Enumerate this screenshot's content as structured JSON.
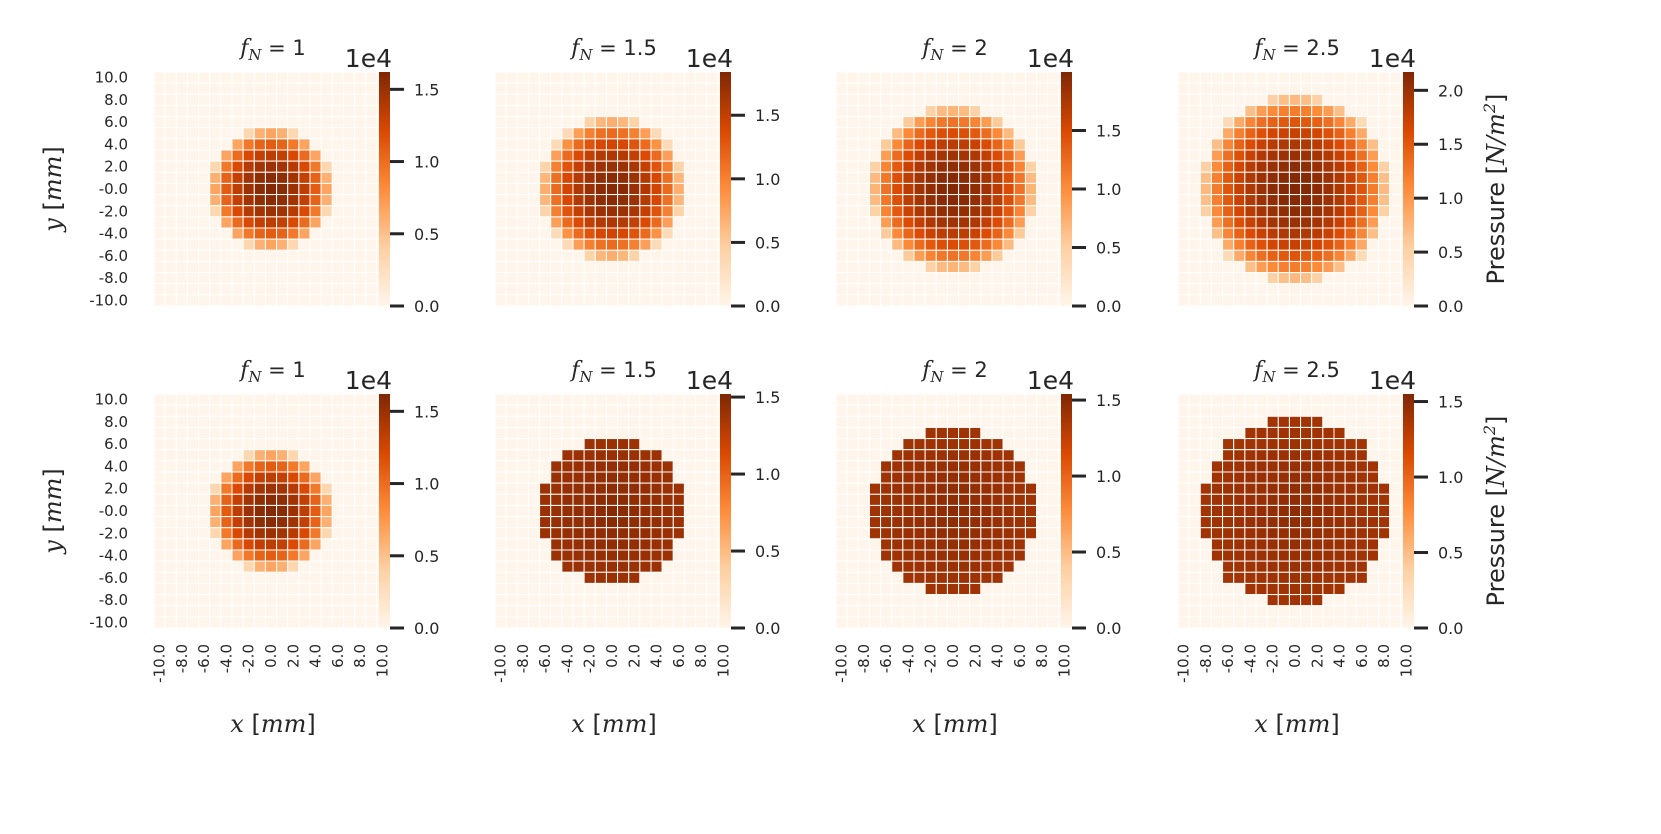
{
  "chart_data": {
    "type": "heatmap",
    "grid_size": 21,
    "tick_labels": [
      "10.0",
      "8.0",
      "6.0",
      "4.0",
      "2.0",
      "-0.0",
      "-2.0",
      "-4.0",
      "-6.0",
      "-8.0",
      "-10.0"
    ],
    "x_tick_labels": [
      "-10.0",
      "-8.0",
      "-6.0",
      "-4.0",
      "-2.0",
      "0.0",
      "2.0",
      "4.0",
      "6.0",
      "8.0",
      "10.0"
    ],
    "xlabel": "x [mm]",
    "ylabel": "y [mm]",
    "colorbar_label": "Pressure [N/m^2]",
    "colorbar_multiplier": "1e4",
    "colormap": [
      "#fff5eb",
      "#fdd0a2",
      "#fd8d3c",
      "#d94801",
      "#7f2704"
    ],
    "panels": [
      {
        "row": 0,
        "col": 0,
        "title_prefix": "f",
        "title_sub": "N",
        "title_value": "= 1",
        "radius_mm": 5.5,
        "mode": "hertz",
        "peak": 1.6,
        "vmax": 1.62,
        "cbar_ticks": [
          "1.5",
          "1.0",
          "0.5",
          "0.0"
        ],
        "cbar_values": [
          1.5,
          1.0,
          0.5,
          0.0
        ]
      },
      {
        "row": 0,
        "col": 1,
        "title_prefix": "f",
        "title_sub": "N",
        "title_value": "= 1.5",
        "radius_mm": 6.5,
        "mode": "hertz",
        "peak": 1.8,
        "vmax": 1.84,
        "cbar_ticks": [
          "1.5",
          "1.0",
          "0.5",
          "0.0"
        ],
        "cbar_values": [
          1.5,
          1.0,
          0.5,
          0.0
        ]
      },
      {
        "row": 0,
        "col": 2,
        "title_prefix": "f",
        "title_sub": "N",
        "title_value": "= 2",
        "radius_mm": 7.5,
        "mode": "hertz",
        "peak": 1.98,
        "vmax": 2.0,
        "cbar_ticks": [
          "1.5",
          "1.0",
          "0.5",
          "0.0"
        ],
        "cbar_values": [
          1.5,
          1.0,
          0.5,
          0.0
        ]
      },
      {
        "row": 0,
        "col": 3,
        "title_prefix": "f",
        "title_sub": "N",
        "title_value": "= 2.5",
        "radius_mm": 8.5,
        "mode": "hertz",
        "peak": 2.15,
        "vmax": 2.17,
        "cbar_ticks": [
          "2.0",
          "1.5",
          "1.0",
          "0.5",
          "0.0"
        ],
        "cbar_values": [
          2.0,
          1.5,
          1.0,
          0.5,
          0.0
        ],
        "show_label": true
      },
      {
        "row": 1,
        "col": 0,
        "title_prefix": "f",
        "title_sub": "N",
        "title_value": "= 1",
        "radius_mm": 5.5,
        "mode": "hertz",
        "peak": 1.6,
        "vmax": 1.62,
        "cbar_ticks": [
          "1.5",
          "1.0",
          "0.5",
          "0.0"
        ],
        "cbar_values": [
          1.5,
          1.0,
          0.5,
          0.0
        ]
      },
      {
        "row": 1,
        "col": 1,
        "title_prefix": "f",
        "title_sub": "N",
        "title_value": "= 1.5",
        "radius_mm": 6.5,
        "mode": "uniform",
        "peak": 1.5,
        "vmax": 1.52,
        "cbar_ticks": [
          "1.5",
          "1.0",
          "0.5",
          "0.0"
        ],
        "cbar_values": [
          1.5,
          1.0,
          0.5,
          0.0
        ]
      },
      {
        "row": 1,
        "col": 2,
        "title_prefix": "f",
        "title_sub": "N",
        "title_value": "= 2",
        "radius_mm": 7.5,
        "mode": "uniform",
        "peak": 1.5,
        "vmax": 1.54,
        "cbar_ticks": [
          "1.5",
          "1.0",
          "0.5",
          "0.0"
        ],
        "cbar_values": [
          1.5,
          1.0,
          0.5,
          0.0
        ]
      },
      {
        "row": 1,
        "col": 3,
        "title_prefix": "f",
        "title_sub": "N",
        "title_value": "= 2.5",
        "radius_mm": 8.5,
        "mode": "uniform",
        "peak": 1.5,
        "vmax": 1.55,
        "cbar_ticks": [
          "1.5",
          "1.0",
          "0.5",
          "0.0"
        ],
        "cbar_values": [
          1.5,
          1.0,
          0.5,
          0.0
        ],
        "show_label": true
      }
    ]
  }
}
